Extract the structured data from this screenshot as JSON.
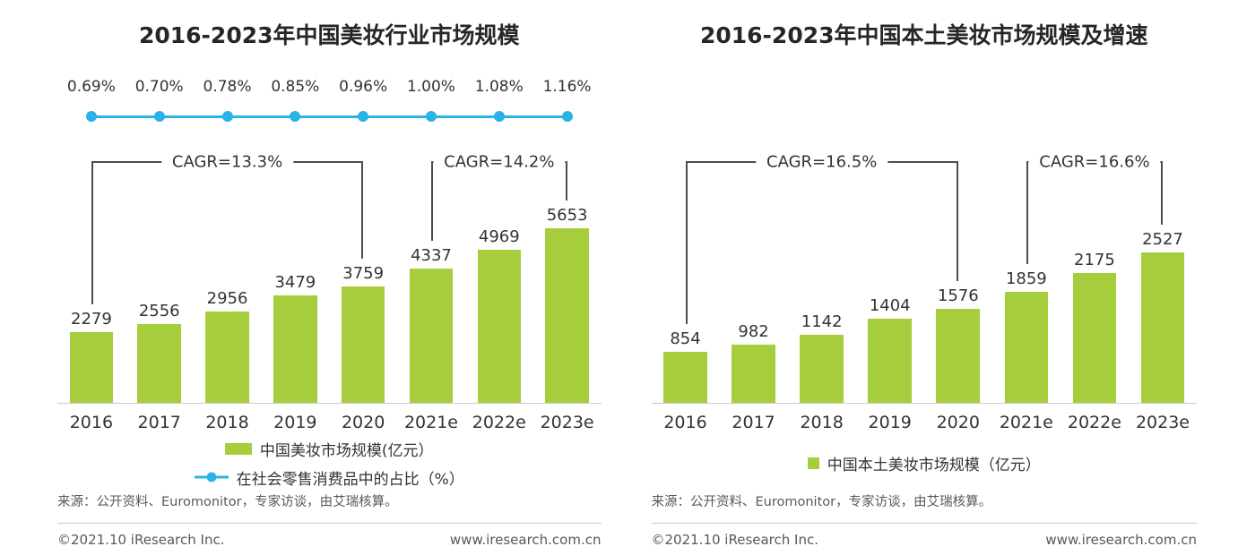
{
  "colors": {
    "bar": "#a6ce3c",
    "line": "#29b3e6",
    "bracket": "#4d4d4d",
    "title_text": "#262626",
    "label_text": "#333333",
    "muted_text": "#595959",
    "axis": "#cccccc"
  },
  "chart_data": [
    {
      "type": "bar",
      "title": "2016-2023年中国美妆行业市场规模",
      "categories": [
        "2016",
        "2017",
        "2018",
        "2019",
        "2020",
        "2021e",
        "2022e",
        "2023e"
      ],
      "series": [
        {
          "name": "中国美妆市场规模(亿元）",
          "type": "bar",
          "values": [
            2279,
            2556,
            2956,
            3479,
            3759,
            4337,
            4969,
            5653
          ]
        },
        {
          "name": "在社会零售消费品中的占比（%）",
          "type": "line",
          "values": [
            0.69,
            0.7,
            0.78,
            0.85,
            0.96,
            1.0,
            1.08,
            1.16
          ],
          "labels": [
            "0.69%",
            "0.70%",
            "0.78%",
            "0.85%",
            "0.96%",
            "1.00%",
            "1.08%",
            "1.16%"
          ]
        }
      ],
      "ylabel": "",
      "xlabel": "",
      "ylim": [
        0,
        5800
      ],
      "grid": false,
      "legend_position": "bottom",
      "annotations": [
        {
          "label": "CAGR=13.3%",
          "from": 0,
          "to": 4
        },
        {
          "label": "CAGR=14.2%",
          "from": 5,
          "to": 7
        }
      ],
      "legend": [
        {
          "marker": "bar",
          "label": "中国美妆市场规模(亿元）"
        },
        {
          "marker": "line",
          "label": "在社会零售消费品中的占比（%）"
        }
      ],
      "source": "来源：公开资料、Euromonitor，专家访谈，由艾瑞核算。",
      "footer_left": "©2021.10 iResearch Inc.",
      "footer_right": "www.iresearch.com.cn"
    },
    {
      "type": "bar",
      "title": "2016-2023年中国本土美妆市场规模及增速",
      "categories": [
        "2016",
        "2017",
        "2018",
        "2019",
        "2020",
        "2021e",
        "2022e",
        "2023e"
      ],
      "series": [
        {
          "name": "中国本土美妆市场规模（亿元）",
          "type": "bar",
          "values": [
            854,
            982,
            1142,
            1404,
            1576,
            1859,
            2175,
            2527
          ]
        }
      ],
      "ylabel": "",
      "xlabel": "",
      "ylim": [
        0,
        3000
      ],
      "grid": false,
      "legend_position": "bottom",
      "annotations": [
        {
          "label": "CAGR=16.5%",
          "from": 0,
          "to": 4
        },
        {
          "label": "CAGR=16.6%",
          "from": 5,
          "to": 7
        }
      ],
      "legend": [
        {
          "marker": "square",
          "label": "中国本土美妆市场规模（亿元）"
        }
      ],
      "source": "来源：公开资料、Euromonitor，专家访谈，由艾瑞核算。",
      "footer_left": "©2021.10 iResearch Inc.",
      "footer_right": "www.iresearch.com.cn"
    }
  ]
}
